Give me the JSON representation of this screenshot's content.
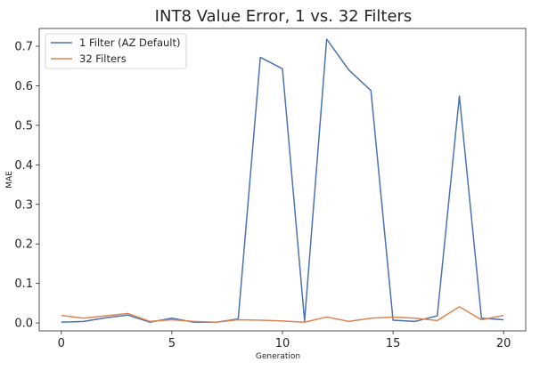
{
  "chart_data": {
    "type": "line",
    "title": "INT8 Value Error, 1 vs. 32 Filters",
    "xlabel": "Generation",
    "ylabel": "MAE",
    "xlim": [
      -1,
      21
    ],
    "ylim": [
      -0.02,
      0.745
    ],
    "xticks": [
      0,
      5,
      10,
      15,
      20
    ],
    "yticks": [
      0.0,
      0.1,
      0.2,
      0.3,
      0.4,
      0.5,
      0.6,
      0.7
    ],
    "grid": false,
    "legend_position": "top-left",
    "x": [
      0,
      1,
      2,
      3,
      4,
      5,
      6,
      7,
      8,
      9,
      10,
      11,
      12,
      13,
      14,
      15,
      16,
      17,
      18,
      19,
      20
    ],
    "series": [
      {
        "name": "1 Filter (AZ Default)",
        "color": "#4c72b0",
        "values": [
          0.002,
          0.004,
          0.013,
          0.02,
          0.002,
          0.012,
          0.002,
          0.002,
          0.01,
          0.672,
          0.643,
          0.005,
          0.718,
          0.64,
          0.588,
          0.007,
          0.004,
          0.018,
          0.574,
          0.012,
          0.008
        ]
      },
      {
        "name": "32 Filters",
        "color": "#dd8452",
        "values": [
          0.019,
          0.012,
          0.018,
          0.024,
          0.004,
          0.008,
          0.004,
          0.002,
          0.008,
          0.007,
          0.005,
          0.002,
          0.015,
          0.004,
          0.012,
          0.015,
          0.012,
          0.006,
          0.041,
          0.008,
          0.019
        ]
      }
    ]
  }
}
